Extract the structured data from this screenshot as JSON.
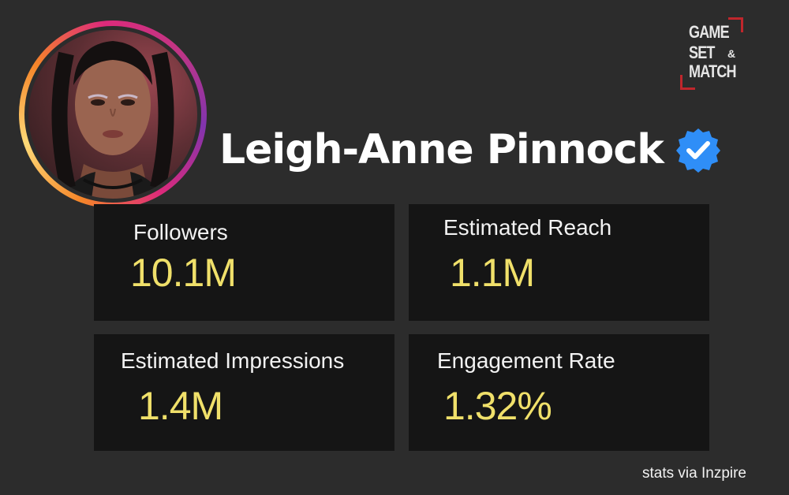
{
  "profile": {
    "name": "Leigh-Anne Pinnock",
    "verified": true,
    "avatar_icon": "profile-photo"
  },
  "logo": {
    "line1": "GAME",
    "line2": "SET",
    "ampersand": "&",
    "line3": "MATCH",
    "accent_color": "#c0262c"
  },
  "stats": [
    {
      "label": "Followers",
      "value": "10.1M"
    },
    {
      "label": "Estimated Reach",
      "value": "1.1M"
    },
    {
      "label": "Estimated Impressions",
      "value": "1.4M"
    },
    {
      "label": "Engagement Rate",
      "value": "1.32%"
    }
  ],
  "footer": {
    "source": "stats via Inzpire"
  },
  "colors": {
    "background": "#2c2c2c",
    "card": "#151515",
    "value": "#f0e06a",
    "verified_badge": "#2f8ef7"
  }
}
